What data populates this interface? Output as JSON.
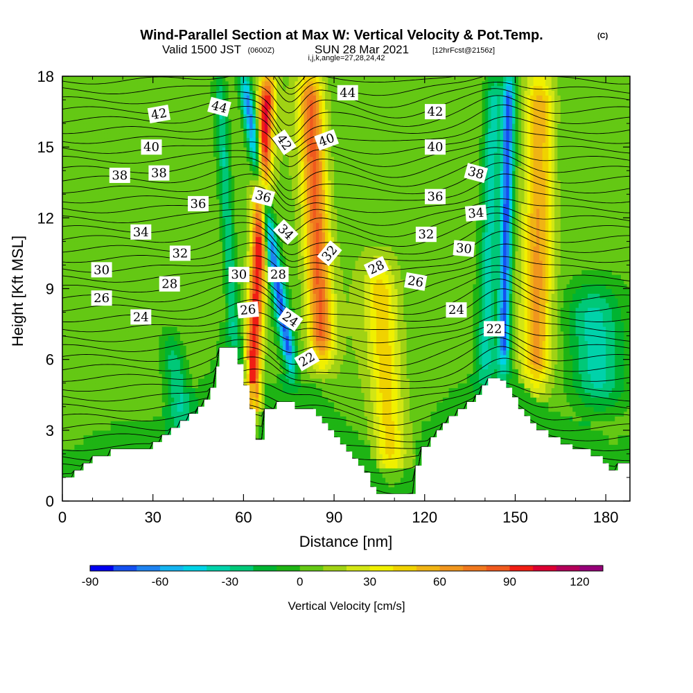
{
  "chart_data": {
    "type": "heatmap",
    "title": "Wind-Parallel Section at Max W: Vertical Velocity & Pot.Temp.",
    "copyright": "(C)",
    "subtitle_main": "Valid 1500 JST",
    "subtitle_utc": "(0600Z)",
    "subtitle_date": "SUN 28 Mar 2021",
    "subtitle_fcst": "[12hrFcst@2156z]",
    "subtitle_ijk": "i,j,k,angle=27,28,24,42",
    "xlabel": "Distance [nm]",
    "ylabel": "Height [Kft MSL]",
    "xlim": [
      0,
      188
    ],
    "ylim": [
      0,
      18
    ],
    "xticks": [
      "0",
      "30",
      "60",
      "90",
      "120",
      "150",
      "180"
    ],
    "yticks": [
      "0",
      "3",
      "6",
      "9",
      "12",
      "15",
      "18"
    ],
    "colorbar": {
      "label": "Vertical Velocity [cm/s]",
      "range": [
        -90,
        130
      ],
      "step": 10,
      "ticks": [
        "-90",
        "-60",
        "-30",
        "0",
        "30",
        "60",
        "90",
        "120"
      ],
      "colors": [
        "#0000f0",
        "#1450f0",
        "#1e82f0",
        "#14b4f0",
        "#00d2e6",
        "#00d2aa",
        "#00c878",
        "#00b432",
        "#1eb414",
        "#64c814",
        "#a0d214",
        "#d2e614",
        "#f0f000",
        "#f0d200",
        "#f0b414",
        "#f0961e",
        "#f0781e",
        "#f05a1e",
        "#f01e14",
        "#dc0032",
        "#b4005a",
        "#960078"
      ]
    },
    "terrain": [
      [
        0,
        1.0
      ],
      [
        4,
        1.0
      ],
      [
        4,
        1.3
      ],
      [
        7,
        1.3
      ],
      [
        7,
        1.6
      ],
      [
        10,
        1.6
      ],
      [
        10,
        1.9
      ],
      [
        16,
        1.9
      ],
      [
        16,
        2.2
      ],
      [
        30,
        2.2
      ],
      [
        30,
        2.5
      ],
      [
        33,
        2.5
      ],
      [
        33,
        2.8
      ],
      [
        36,
        2.8
      ],
      [
        36,
        3.1
      ],
      [
        39,
        3.1
      ],
      [
        39,
        3.4
      ],
      [
        42,
        3.4
      ],
      [
        42,
        3.7
      ],
      [
        45,
        3.7
      ],
      [
        45,
        4.0
      ],
      [
        47,
        4.0
      ],
      [
        47,
        4.3
      ],
      [
        49,
        4.3
      ],
      [
        49,
        4.8
      ],
      [
        51,
        4.8
      ],
      [
        51,
        5.7
      ],
      [
        52,
        5.7
      ],
      [
        52,
        6.5
      ],
      [
        58,
        6.5
      ],
      [
        58,
        5.8
      ],
      [
        60,
        5.8
      ],
      [
        60,
        4.9
      ],
      [
        62,
        4.9
      ],
      [
        62,
        3.9
      ],
      [
        64,
        3.9
      ],
      [
        64,
        2.6
      ],
      [
        67,
        2.6
      ],
      [
        67,
        3.9
      ],
      [
        71,
        3.9
      ],
      [
        71,
        4.2
      ],
      [
        77,
        4.2
      ],
      [
        77,
        3.9
      ],
      [
        84,
        3.9
      ],
      [
        84,
        3.6
      ],
      [
        86,
        3.6
      ],
      [
        86,
        3.3
      ],
      [
        88,
        3.3
      ],
      [
        88,
        3.0
      ],
      [
        90,
        3.0
      ],
      [
        90,
        2.7
      ],
      [
        92,
        2.7
      ],
      [
        92,
        2.4
      ],
      [
        94,
        2.4
      ],
      [
        94,
        2.1
      ],
      [
        96,
        2.1
      ],
      [
        96,
        1.8
      ],
      [
        98,
        1.8
      ],
      [
        98,
        1.5
      ],
      [
        100,
        1.5
      ],
      [
        100,
        1.2
      ],
      [
        102,
        1.2
      ],
      [
        102,
        0.6
      ],
      [
        104,
        0.6
      ],
      [
        104,
        0.3
      ],
      [
        117,
        0.3
      ],
      [
        117,
        1.5
      ],
      [
        119,
        1.5
      ],
      [
        119,
        2.3
      ],
      [
        122,
        2.3
      ],
      [
        122,
        2.7
      ],
      [
        124,
        2.7
      ],
      [
        124,
        3.0
      ],
      [
        126,
        3.0
      ],
      [
        126,
        3.3
      ],
      [
        128,
        3.3
      ],
      [
        128,
        3.6
      ],
      [
        131,
        3.6
      ],
      [
        131,
        3.9
      ],
      [
        134,
        3.9
      ],
      [
        134,
        4.2
      ],
      [
        137,
        4.2
      ],
      [
        137,
        4.5
      ],
      [
        139,
        4.5
      ],
      [
        139,
        4.9
      ],
      [
        141,
        4.9
      ],
      [
        141,
        5.2
      ],
      [
        145,
        5.2
      ],
      [
        145,
        5.1
      ],
      [
        147,
        5.1
      ],
      [
        147,
        4.8
      ],
      [
        149,
        4.8
      ],
      [
        149,
        4.4
      ],
      [
        151,
        4.4
      ],
      [
        151,
        3.9
      ],
      [
        153,
        3.9
      ],
      [
        153,
        3.6
      ],
      [
        155,
        3.6
      ],
      [
        155,
        3.3
      ],
      [
        157,
        3.3
      ],
      [
        157,
        3.0
      ],
      [
        161,
        3.0
      ],
      [
        161,
        2.7
      ],
      [
        165,
        2.7
      ],
      [
        165,
        2.4
      ],
      [
        169,
        2.4
      ],
      [
        169,
        2.2
      ],
      [
        175,
        2.2
      ],
      [
        175,
        1.9
      ],
      [
        179,
        1.9
      ],
      [
        179,
        1.6
      ],
      [
        181,
        1.6
      ],
      [
        181,
        1.3
      ],
      [
        184,
        1.3
      ],
      [
        184,
        1.6
      ],
      [
        188,
        1.6
      ]
    ],
    "updrafts": [
      {
        "x0": 62,
        "x1": 68,
        "y0": 3,
        "y1": 18,
        "peak": 95,
        "width": 2.6
      },
      {
        "x0": 86,
        "x1": 82,
        "y0": 6,
        "y1": 18,
        "peak": 75,
        "width": 4.0
      },
      {
        "x0": 76,
        "x1": 60,
        "y0": 5.5,
        "y1": 18,
        "peak": -75,
        "width": 2.2
      },
      {
        "x0": 57,
        "x1": 52,
        "y0": 6.5,
        "y1": 18,
        "peak": -35,
        "width": 2.0
      },
      {
        "x0": 146,
        "x1": 148,
        "y0": 5.5,
        "y1": 18,
        "peak": -80,
        "width": 2.0
      },
      {
        "x0": 157,
        "x1": 158,
        "y0": 5,
        "y1": 18,
        "peak": 55,
        "width": 4.5
      },
      {
        "x0": 109,
        "x1": 105,
        "y0": 1,
        "y1": 10,
        "peak": 38,
        "width": 5.0
      },
      {
        "x0": 140,
        "x1": 143,
        "y0": 5,
        "y1": 18,
        "peak": -40,
        "width": 3.0
      },
      {
        "x0": 178,
        "x1": 175,
        "y0": 4,
        "y1": 9,
        "peak": -38,
        "width": 9.0
      },
      {
        "x0": 40,
        "x1": 36,
        "y0": 3,
        "y1": 7,
        "peak": -35,
        "width": 4.0
      }
    ],
    "isentrope_levels": [
      22,
      24,
      26,
      28,
      30,
      32,
      34,
      36,
      38,
      40,
      42,
      44
    ],
    "contour_labels": [
      {
        "text": "44",
        "x": 94.5,
        "y": 17.3,
        "rot": 0
      },
      {
        "text": "44",
        "x": 52,
        "y": 16.7,
        "rot": 15
      },
      {
        "text": "42",
        "x": 32,
        "y": 16.4,
        "rot": -10
      },
      {
        "text": "42",
        "x": 123.5,
        "y": 16.5,
        "rot": 0
      },
      {
        "text": "40",
        "x": 29.5,
        "y": 15.0,
        "rot": 0
      },
      {
        "text": "40",
        "x": 123.5,
        "y": 15.0,
        "rot": 0
      },
      {
        "text": "42",
        "x": 73.5,
        "y": 15.2,
        "rot": 55
      },
      {
        "text": "40",
        "x": 87.5,
        "y": 15.3,
        "rot": -20
      },
      {
        "text": "38",
        "x": 19,
        "y": 13.8,
        "rot": 0
      },
      {
        "text": "38",
        "x": 32,
        "y": 13.9,
        "rot": 0
      },
      {
        "text": "38",
        "x": 137,
        "y": 13.9,
        "rot": 15
      },
      {
        "text": "36",
        "x": 45,
        "y": 12.6,
        "rot": 0
      },
      {
        "text": "36",
        "x": 66.5,
        "y": 12.9,
        "rot": 15
      },
      {
        "text": "36",
        "x": 123.5,
        "y": 12.9,
        "rot": 0
      },
      {
        "text": "34",
        "x": 26,
        "y": 11.4,
        "rot": 0
      },
      {
        "text": "34",
        "x": 74,
        "y": 11.4,
        "rot": 45
      },
      {
        "text": "34",
        "x": 137,
        "y": 12.2,
        "rot": -5
      },
      {
        "text": "32",
        "x": 39,
        "y": 10.5,
        "rot": 0
      },
      {
        "text": "32",
        "x": 120.5,
        "y": 11.3,
        "rot": 0
      },
      {
        "text": "32",
        "x": 88.5,
        "y": 10.5,
        "rot": -50
      },
      {
        "text": "30",
        "x": 13,
        "y": 9.8,
        "rot": 0
      },
      {
        "text": "30",
        "x": 58.5,
        "y": 9.6,
        "rot": 0
      },
      {
        "text": "30",
        "x": 133,
        "y": 10.7,
        "rot": 5
      },
      {
        "text": "28",
        "x": 71.5,
        "y": 9.6,
        "rot": 0
      },
      {
        "text": "28",
        "x": 104,
        "y": 9.9,
        "rot": -25
      },
      {
        "text": "28",
        "x": 35.5,
        "y": 9.2,
        "rot": 0
      },
      {
        "text": "26",
        "x": 13,
        "y": 8.6,
        "rot": 0
      },
      {
        "text": "26",
        "x": 61.5,
        "y": 8.1,
        "rot": -5
      },
      {
        "text": "26",
        "x": 117,
        "y": 9.3,
        "rot": 10
      },
      {
        "text": "24",
        "x": 26,
        "y": 7.8,
        "rot": 0
      },
      {
        "text": "24",
        "x": 75.5,
        "y": 7.7,
        "rot": 35
      },
      {
        "text": "24",
        "x": 130.5,
        "y": 8.1,
        "rot": 0
      },
      {
        "text": "22",
        "x": 81,
        "y": 6.0,
        "rot": -30
      },
      {
        "text": "22",
        "x": 143,
        "y": 7.3,
        "rot": 0
      }
    ]
  }
}
